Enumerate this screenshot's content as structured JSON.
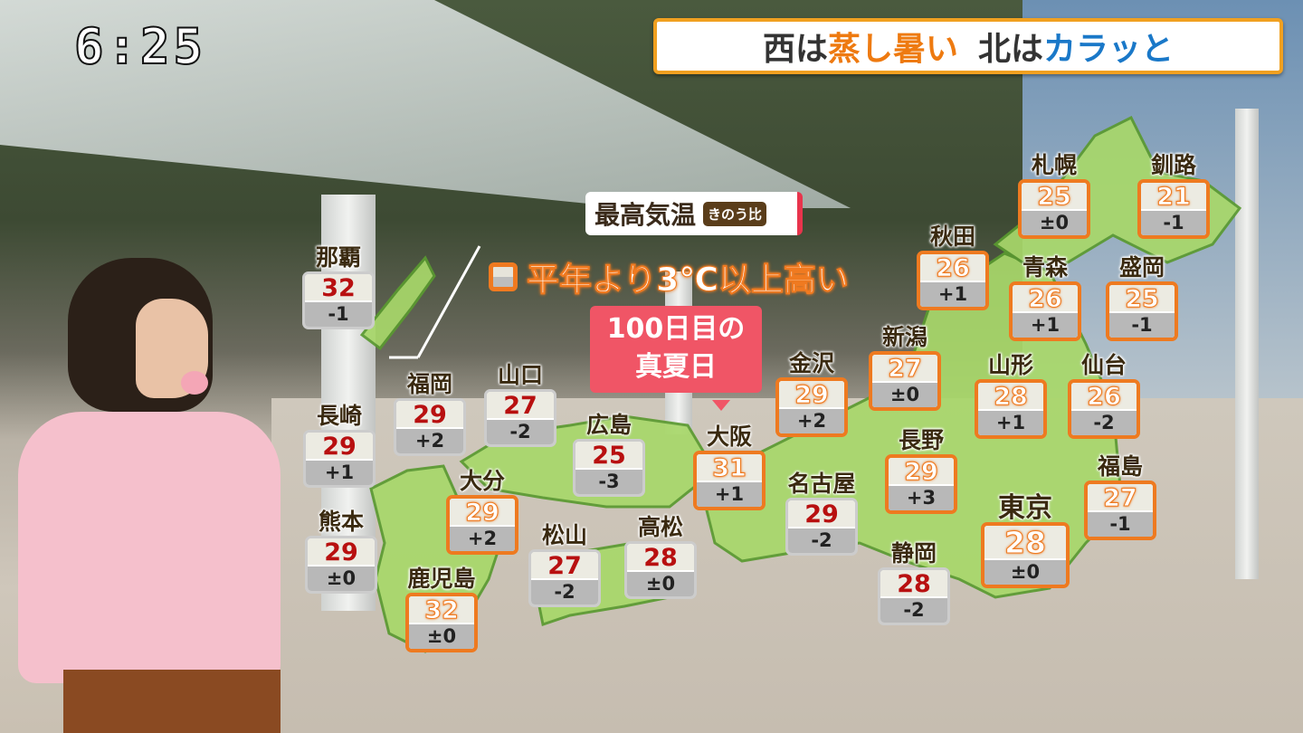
{
  "clock": "6:25",
  "headline": {
    "part1": "西は",
    "part2": "蒸し暑い",
    "part3": "北は",
    "part4": "カラッと"
  },
  "legend": {
    "title": "最高気温",
    "badge": "きのう比",
    "note": "平年より3℃以上高い"
  },
  "callout": {
    "line1": "100日目の",
    "line2": "真夏日"
  },
  "colors": {
    "hot_border": "#ee7a20",
    "normal_temp": "#b81010",
    "callout": "#f05566",
    "map": "#a8d86a"
  },
  "cities": [
    {
      "name": "那覇",
      "temp": "32",
      "diff": "-1",
      "hot": false
    },
    {
      "name": "長崎",
      "temp": "29",
      "diff": "+1",
      "hot": false
    },
    {
      "name": "熊本",
      "temp": "29",
      "diff": "±0",
      "hot": false
    },
    {
      "name": "福岡",
      "temp": "29",
      "diff": "+2",
      "hot": false
    },
    {
      "name": "山口",
      "temp": "27",
      "diff": "-2",
      "hot": false
    },
    {
      "name": "広島",
      "temp": "25",
      "diff": "-3",
      "hot": false
    },
    {
      "name": "大分",
      "temp": "29",
      "diff": "+2",
      "hot": true
    },
    {
      "name": "松山",
      "temp": "27",
      "diff": "-2",
      "hot": false
    },
    {
      "name": "高松",
      "temp": "28",
      "diff": "±0",
      "hot": false
    },
    {
      "name": "鹿児島",
      "temp": "32",
      "diff": "±0",
      "hot": true
    },
    {
      "name": "大阪",
      "temp": "31",
      "diff": "+1",
      "hot": true
    },
    {
      "name": "名古屋",
      "temp": "29",
      "diff": "-2",
      "hot": false
    },
    {
      "name": "静岡",
      "temp": "28",
      "diff": "-2",
      "hot": false
    },
    {
      "name": "金沢",
      "temp": "29",
      "diff": "+2",
      "hot": true
    },
    {
      "name": "新潟",
      "temp": "27",
      "diff": "±0",
      "hot": true
    },
    {
      "name": "長野",
      "temp": "29",
      "diff": "+3",
      "hot": true
    },
    {
      "name": "秋田",
      "temp": "26",
      "diff": "+1",
      "hot": true
    },
    {
      "name": "青森",
      "temp": "26",
      "diff": "+1",
      "hot": true
    },
    {
      "name": "盛岡",
      "temp": "25",
      "diff": "-1",
      "hot": true
    },
    {
      "name": "札幌",
      "temp": "25",
      "diff": "±0",
      "hot": true
    },
    {
      "name": "釧路",
      "temp": "21",
      "diff": "-1",
      "hot": true
    },
    {
      "name": "山形",
      "temp": "28",
      "diff": "+1",
      "hot": true
    },
    {
      "name": "仙台",
      "temp": "26",
      "diff": "-2",
      "hot": true
    },
    {
      "name": "福島",
      "temp": "27",
      "diff": "-1",
      "hot": true
    },
    {
      "name": "東京",
      "temp": "28",
      "diff": "±0",
      "hot": true
    }
  ]
}
